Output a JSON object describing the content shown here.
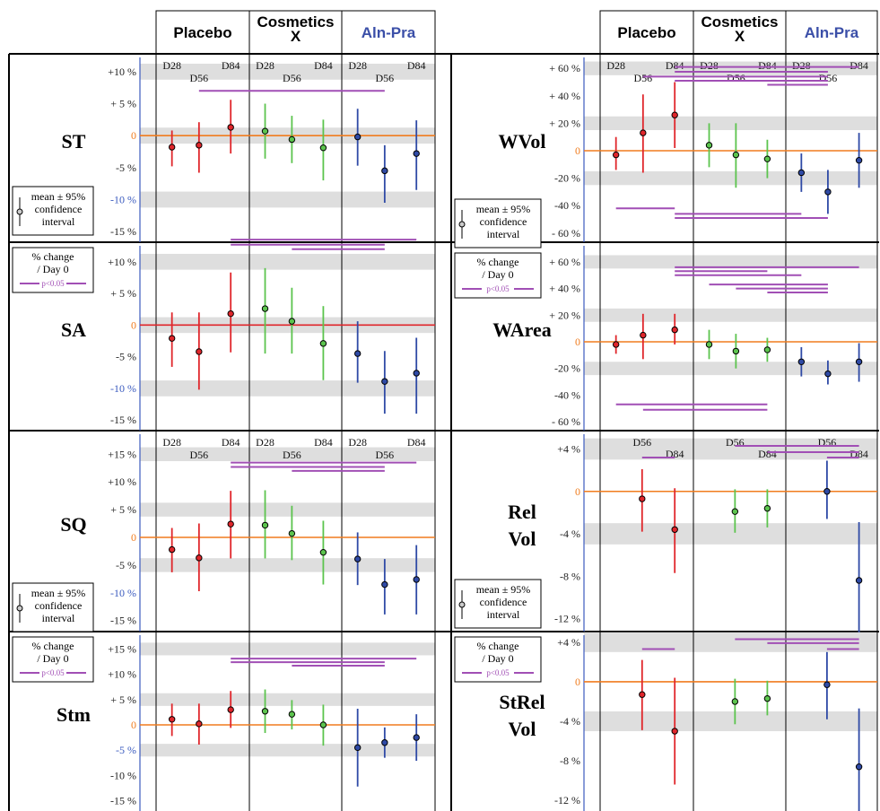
{
  "header": {
    "groups": [
      {
        "label": "Placebo",
        "lines": [
          "Placebo"
        ],
        "color": "#000000"
      },
      {
        "label": "Cosmetics X",
        "lines": [
          "Cosmetics",
          "X"
        ],
        "color": "#000000"
      },
      {
        "label": "Aln-Pra",
        "lines": [
          "Aln-Pra"
        ],
        "color": "#3b4fa8"
      }
    ]
  },
  "colors": {
    "placebo": "#e0262b",
    "cosmetics": "#5cc44e",
    "alnpra": "#2f4aa6",
    "sig_bar": "#a14fb5",
    "zero_line": "#f07c1e",
    "zero_line_sa": "#e0262b",
    "band": "#dedede",
    "axis_blue": "#3b5bbf"
  },
  "legend": {
    "mean_ci": [
      "mean ± 95%",
      "confidence",
      "interval"
    ],
    "pct_change": [
      "% change",
      "/ Day 0"
    ],
    "sig": "p<0.05"
  },
  "chart_data": [
    {
      "type": "scatter",
      "id": "ST",
      "title": "ST",
      "day_labels": [
        "D28",
        "D56",
        "D84"
      ],
      "ticks": [
        10,
        5,
        0,
        -5,
        -10,
        -15
      ],
      "tick_labels": [
        "+10 %",
        "+ 5 %",
        "0",
        "-5 %",
        "-10 %",
        "-15 %"
      ],
      "ylim": [
        -17.5,
        15
      ],
      "series": [
        {
          "name": "Placebo",
          "mean": [
            -1.8,
            -1.5,
            1.3
          ],
          "lo": [
            -4.8,
            -5.8,
            -2.8
          ],
          "hi": [
            0.8,
            2.1,
            5.6
          ]
        },
        {
          "name": "Cosmetics X",
          "mean": [
            0.7,
            -0.6,
            -1.9
          ],
          "lo": [
            -3.6,
            -4.3,
            -7.0
          ],
          "hi": [
            5.0,
            3.1,
            2.5
          ]
        },
        {
          "name": "Aln-Pra",
          "mean": [
            -0.2,
            -5.5,
            -2.8
          ],
          "lo": [
            -4.7,
            -10.5,
            -8.5
          ],
          "hi": [
            4.2,
            -1.5,
            2.4
          ]
        }
      ],
      "sig_bars": [
        {
          "from": [
            "Placebo",
            "D56"
          ],
          "to": [
            "Aln-Pra",
            "D56"
          ],
          "y": 7
        }
      ]
    },
    {
      "type": "scatter",
      "id": "SA",
      "title": "SA",
      "day_labels": [],
      "ticks": [
        10,
        5,
        0,
        -5,
        -10,
        -15
      ],
      "tick_labels": [
        "+10 %",
        "+ 5 %",
        "0",
        "-5 %",
        "-10 %",
        "-15 %"
      ],
      "ylim": [
        -17.5,
        15
      ],
      "series": [
        {
          "name": "Placebo",
          "mean": [
            -2.1,
            -4.2,
            1.8
          ],
          "lo": [
            -6.6,
            -10.2,
            -4.3
          ],
          "hi": [
            2.0,
            2.0,
            8.3
          ]
        },
        {
          "name": "Cosmetics X",
          "mean": [
            2.6,
            0.6,
            -2.9
          ],
          "lo": [
            -4.5,
            -4.5,
            -8.7
          ],
          "hi": [
            9.0,
            5.9,
            3.0
          ]
        },
        {
          "name": "Aln-Pra",
          "mean": [
            -4.5,
            -8.9,
            -7.6
          ],
          "lo": [
            -9.1,
            -14.0,
            -14.0
          ],
          "hi": [
            0.6,
            -4.1,
            -2.0
          ]
        }
      ],
      "sig_bars": [
        {
          "from": [
            "Placebo",
            "D84"
          ],
          "to": [
            "Aln-Pra",
            "D84"
          ],
          "y": 13.5
        },
        {
          "from": [
            "Placebo",
            "D84"
          ],
          "to": [
            "Aln-Pra",
            "D56"
          ],
          "y": 12.7
        },
        {
          "from": [
            "Cosmetics X",
            "D56"
          ],
          "to": [
            "Aln-Pra",
            "D56"
          ],
          "y": 12.0
        }
      ]
    },
    {
      "type": "scatter",
      "id": "SQ",
      "title": "SQ",
      "day_labels": [
        "D28",
        "D56",
        "D84"
      ],
      "ticks": [
        15,
        10,
        5,
        0,
        -5,
        -10,
        -15
      ],
      "tick_labels": [
        "+15 %",
        "+10 %",
        "+ 5 %",
        "0",
        "-5 %",
        "-10 %",
        "-15 %"
      ],
      "ylim": [
        -17.5,
        20
      ],
      "series": [
        {
          "name": "Placebo",
          "mean": [
            -2.2,
            -3.7,
            2.4
          ],
          "lo": [
            -6.3,
            -9.7,
            -3.8
          ],
          "hi": [
            1.7,
            2.5,
            8.4
          ]
        },
        {
          "name": "Cosmetics X",
          "mean": [
            2.2,
            0.7,
            -2.7
          ],
          "lo": [
            -3.8,
            -4.1,
            -8.5
          ],
          "hi": [
            8.5,
            5.7,
            3.0
          ]
        },
        {
          "name": "Aln-Pra",
          "mean": [
            -3.9,
            -8.5,
            -7.6
          ],
          "lo": [
            -8.6,
            -13.9,
            -13.9
          ],
          "hi": [
            0.9,
            -3.9,
            -1.4
          ]
        }
      ],
      "sig_bars": [
        {
          "from": [
            "Placebo",
            "D84"
          ],
          "to": [
            "Aln-Pra",
            "D84"
          ],
          "y": 13.5
        },
        {
          "from": [
            "Placebo",
            "D84"
          ],
          "to": [
            "Aln-Pra",
            "D56"
          ],
          "y": 12.7
        },
        {
          "from": [
            "Cosmetics X",
            "D56"
          ],
          "to": [
            "Aln-Pra",
            "D56"
          ],
          "y": 12.0
        }
      ]
    },
    {
      "type": "scatter",
      "id": "Stm",
      "title": "Stm",
      "day_labels": [],
      "ticks": [
        15,
        10,
        5,
        0,
        -5,
        -10,
        -15
      ],
      "tick_labels": [
        "+15 %",
        "+10 %",
        "+ 5 %",
        "0",
        "-5 %",
        "-10 %",
        "-15 %"
      ],
      "ylim": [
        -17.5,
        20
      ],
      "series": [
        {
          "name": "Placebo",
          "mean": [
            1.1,
            0.2,
            3.0
          ],
          "lo": [
            -2.2,
            -3.9,
            -0.6
          ],
          "hi": [
            4.2,
            4.2,
            6.7
          ]
        },
        {
          "name": "Cosmetics X",
          "mean": [
            2.7,
            2.1,
            0.0
          ],
          "lo": [
            -1.6,
            -0.9,
            -4.1
          ],
          "hi": [
            7.0,
            4.9,
            4.0
          ]
        },
        {
          "name": "Aln-Pra",
          "mean": [
            -4.5,
            -3.5,
            -2.5
          ],
          "lo": [
            -12.2,
            -6.5,
            -7.1
          ],
          "hi": [
            3.2,
            -0.5,
            2.1
          ]
        }
      ],
      "sig_bars": [
        {
          "from": [
            "Placebo",
            "D84"
          ],
          "to": [
            "Aln-Pra",
            "D84"
          ],
          "y": 13.1
        },
        {
          "from": [
            "Placebo",
            "D84"
          ],
          "to": [
            "Aln-Pra",
            "D56"
          ],
          "y": 12.4
        },
        {
          "from": [
            "Cosmetics X",
            "D56"
          ],
          "to": [
            "Aln-Pra",
            "D56"
          ],
          "y": 11.7
        }
      ]
    },
    {
      "type": "scatter",
      "id": "WVol",
      "title": "WVol",
      "day_labels": [
        "D28",
        "D56",
        "D84"
      ],
      "ticks": [
        60,
        40,
        20,
        0,
        -20,
        -40,
        -60
      ],
      "tick_labels": [
        "+ 60 %",
        "+ 40 %",
        "+ 20 %",
        "0",
        "-20 %",
        "-40 %",
        "- 60 %"
      ],
      "ylim": [
        -65,
        65
      ],
      "series": [
        {
          "name": "Placebo",
          "mean": [
            -3,
            13,
            26
          ],
          "lo": [
            -14,
            -16,
            2
          ],
          "hi": [
            10,
            41,
            50
          ]
        },
        {
          "name": "Cosmetics X",
          "mean": [
            4,
            -3,
            -6
          ],
          "lo": [
            -12,
            -27,
            -20
          ],
          "hi": [
            20,
            20,
            8
          ]
        },
        {
          "name": "Aln-Pra",
          "mean": [
            -16,
            -30,
            -7
          ],
          "lo": [
            -30,
            -46,
            -27
          ],
          "hi": [
            -2,
            -14,
            13
          ]
        }
      ],
      "sig_bars": [
        {
          "from": [
            "Placebo",
            "D84"
          ],
          "to": [
            "Aln-Pra",
            "D84"
          ],
          "y": 61
        },
        {
          "from": [
            "Placebo",
            "D84"
          ],
          "to": [
            "Aln-Pra",
            "D56"
          ],
          "y": 57.5
        },
        {
          "from": [
            "Placebo",
            "D56"
          ],
          "to": [
            "Aln-Pra",
            "D56"
          ],
          "y": 54
        },
        {
          "from": [
            "Placebo",
            "D84"
          ],
          "to": [
            "Aln-Pra",
            "D56"
          ],
          "y": 51
        },
        {
          "from": [
            "Cosmetics X",
            "D84"
          ],
          "to": [
            "Aln-Pra",
            "D56"
          ],
          "y": 48
        },
        {
          "from": [
            "Placebo",
            "D28"
          ],
          "to": [
            "Placebo",
            "D84"
          ],
          "y": -42
        },
        {
          "from": [
            "Placebo",
            "D84"
          ],
          "to": [
            "Aln-Pra",
            "D28"
          ],
          "y": -46
        },
        {
          "from": [
            "Placebo",
            "D84"
          ],
          "to": [
            "Aln-Pra",
            "D56"
          ],
          "y": -49
        }
      ]
    },
    {
      "type": "scatter",
      "id": "WArea",
      "title": "WArea",
      "day_labels": [],
      "ticks": [
        60,
        40,
        20,
        0,
        -20,
        -40,
        -60
      ],
      "tick_labels": [
        "+ 60 %",
        "+ 40 %",
        "+ 20 %",
        "0",
        "-20 %",
        "-40 %",
        "- 60 %"
      ],
      "ylim": [
        -65,
        65
      ],
      "series": [
        {
          "name": "Placebo",
          "mean": [
            -2,
            5,
            9
          ],
          "lo": [
            -9,
            -13,
            -2
          ],
          "hi": [
            5,
            21,
            21
          ]
        },
        {
          "name": "Cosmetics X",
          "mean": [
            -2,
            -7,
            -6
          ],
          "lo": [
            -13,
            -20,
            -15
          ],
          "hi": [
            9,
            6,
            3
          ]
        },
        {
          "name": "Aln-Pra",
          "mean": [
            -15,
            -24,
            -15
          ],
          "lo": [
            -26,
            -32,
            -30
          ],
          "hi": [
            -4,
            -14,
            -1
          ]
        }
      ],
      "sig_bars": [
        {
          "from": [
            "Placebo",
            "D84"
          ],
          "to": [
            "Aln-Pra",
            "D84"
          ],
          "y": 56
        },
        {
          "from": [
            "Placebo",
            "D84"
          ],
          "to": [
            "Cosmetics X",
            "D84"
          ],
          "y": 53
        },
        {
          "from": [
            "Placebo",
            "D84"
          ],
          "to": [
            "Aln-Pra",
            "D28"
          ],
          "y": 50
        },
        {
          "from": [
            "Cosmetics X",
            "D28"
          ],
          "to": [
            "Aln-Pra",
            "D56"
          ],
          "y": 43
        },
        {
          "from": [
            "Cosmetics X",
            "D56"
          ],
          "to": [
            "Aln-Pra",
            "D56"
          ],
          "y": 40
        },
        {
          "from": [
            "Cosmetics X",
            "D84"
          ],
          "to": [
            "Aln-Pra",
            "D56"
          ],
          "y": 37
        },
        {
          "from": [
            "Placebo",
            "D28"
          ],
          "to": [
            "Cosmetics X",
            "D84"
          ],
          "y": -47
        },
        {
          "from": [
            "Placebo",
            "D56"
          ],
          "to": [
            "Cosmetics X",
            "D84"
          ],
          "y": -51
        }
      ]
    },
    {
      "type": "scatter",
      "id": "RelVol",
      "title": "Rel Vol",
      "title_lines": [
        "Rel",
        "Vol"
      ],
      "day_labels": [
        "D56",
        "D84"
      ],
      "ticks": [
        4,
        0,
        -4,
        -8,
        -12
      ],
      "tick_labels": [
        "+4 %",
        "0",
        "-4 %",
        "-8 %",
        "-12 %"
      ],
      "ylim": [
        -14,
        6.5
      ],
      "series": [
        {
          "name": "Placebo",
          "mean": [
            -0.7,
            -3.6
          ],
          "lo": [
            -3.8,
            -7.7
          ],
          "hi": [
            2.1,
            0.3
          ]
        },
        {
          "name": "Cosmetics X",
          "mean": [
            -1.9,
            -1.6
          ],
          "lo": [
            -3.9,
            -3.4
          ],
          "hi": [
            0.2,
            0.2
          ]
        },
        {
          "name": "Aln-Pra",
          "mean": [
            0.0,
            -8.4
          ],
          "lo": [
            -2.6,
            -14.0
          ],
          "hi": [
            2.9,
            -2.9
          ]
        }
      ],
      "sig_bars": [
        {
          "from": [
            "Placebo",
            "D56"
          ],
          "to": [
            "Placebo",
            "D84"
          ],
          "y": 3.2
        },
        {
          "from": [
            "Cosmetics X",
            "D56"
          ],
          "to": [
            "Aln-Pra",
            "D84"
          ],
          "y": 4.3
        },
        {
          "from": [
            "Cosmetics X",
            "D84"
          ],
          "to": [
            "Aln-Pra",
            "D84"
          ],
          "y": 3.7
        },
        {
          "from": [
            "Aln-Pra",
            "D56"
          ],
          "to": [
            "Aln-Pra",
            "D84"
          ],
          "y": 3.2
        }
      ]
    },
    {
      "type": "scatter",
      "id": "StRelVol",
      "title": "StRel Vol",
      "title_lines": [
        "StRel",
        "Vol"
      ],
      "day_labels": [],
      "ticks": [
        4,
        0,
        -4,
        -8,
        -12
      ],
      "tick_labels": [
        "+4 %",
        "0",
        "-4 %",
        "-8 %",
        "-12 %"
      ],
      "ylim": [
        -14,
        5.5
      ],
      "series": [
        {
          "name": "Placebo",
          "mean": [
            -1.3,
            -5.0
          ],
          "lo": [
            -4.9,
            -10.4
          ],
          "hi": [
            2.2,
            0.4
          ]
        },
        {
          "name": "Cosmetics X",
          "mean": [
            -2.0,
            -1.7
          ],
          "lo": [
            -4.3,
            -3.4
          ],
          "hi": [
            0.3,
            0.1
          ]
        },
        {
          "name": "Aln-Pra",
          "mean": [
            -0.3,
            -8.6
          ],
          "lo": [
            -3.8,
            -14.0
          ],
          "hi": [
            3.0,
            -2.7
          ]
        }
      ],
      "sig_bars": [
        {
          "from": [
            "Placebo",
            "D56"
          ],
          "to": [
            "Placebo",
            "D84"
          ],
          "y": 3.3
        },
        {
          "from": [
            "Cosmetics X",
            "D56"
          ],
          "to": [
            "Aln-Pra",
            "D84"
          ],
          "y": 4.3
        },
        {
          "from": [
            "Cosmetics X",
            "D84"
          ],
          "to": [
            "Aln-Pra",
            "D84"
          ],
          "y": 3.9
        },
        {
          "from": [
            "Aln-Pra",
            "D56"
          ],
          "to": [
            "Aln-Pra",
            "D84"
          ],
          "y": 3.3
        }
      ]
    }
  ]
}
